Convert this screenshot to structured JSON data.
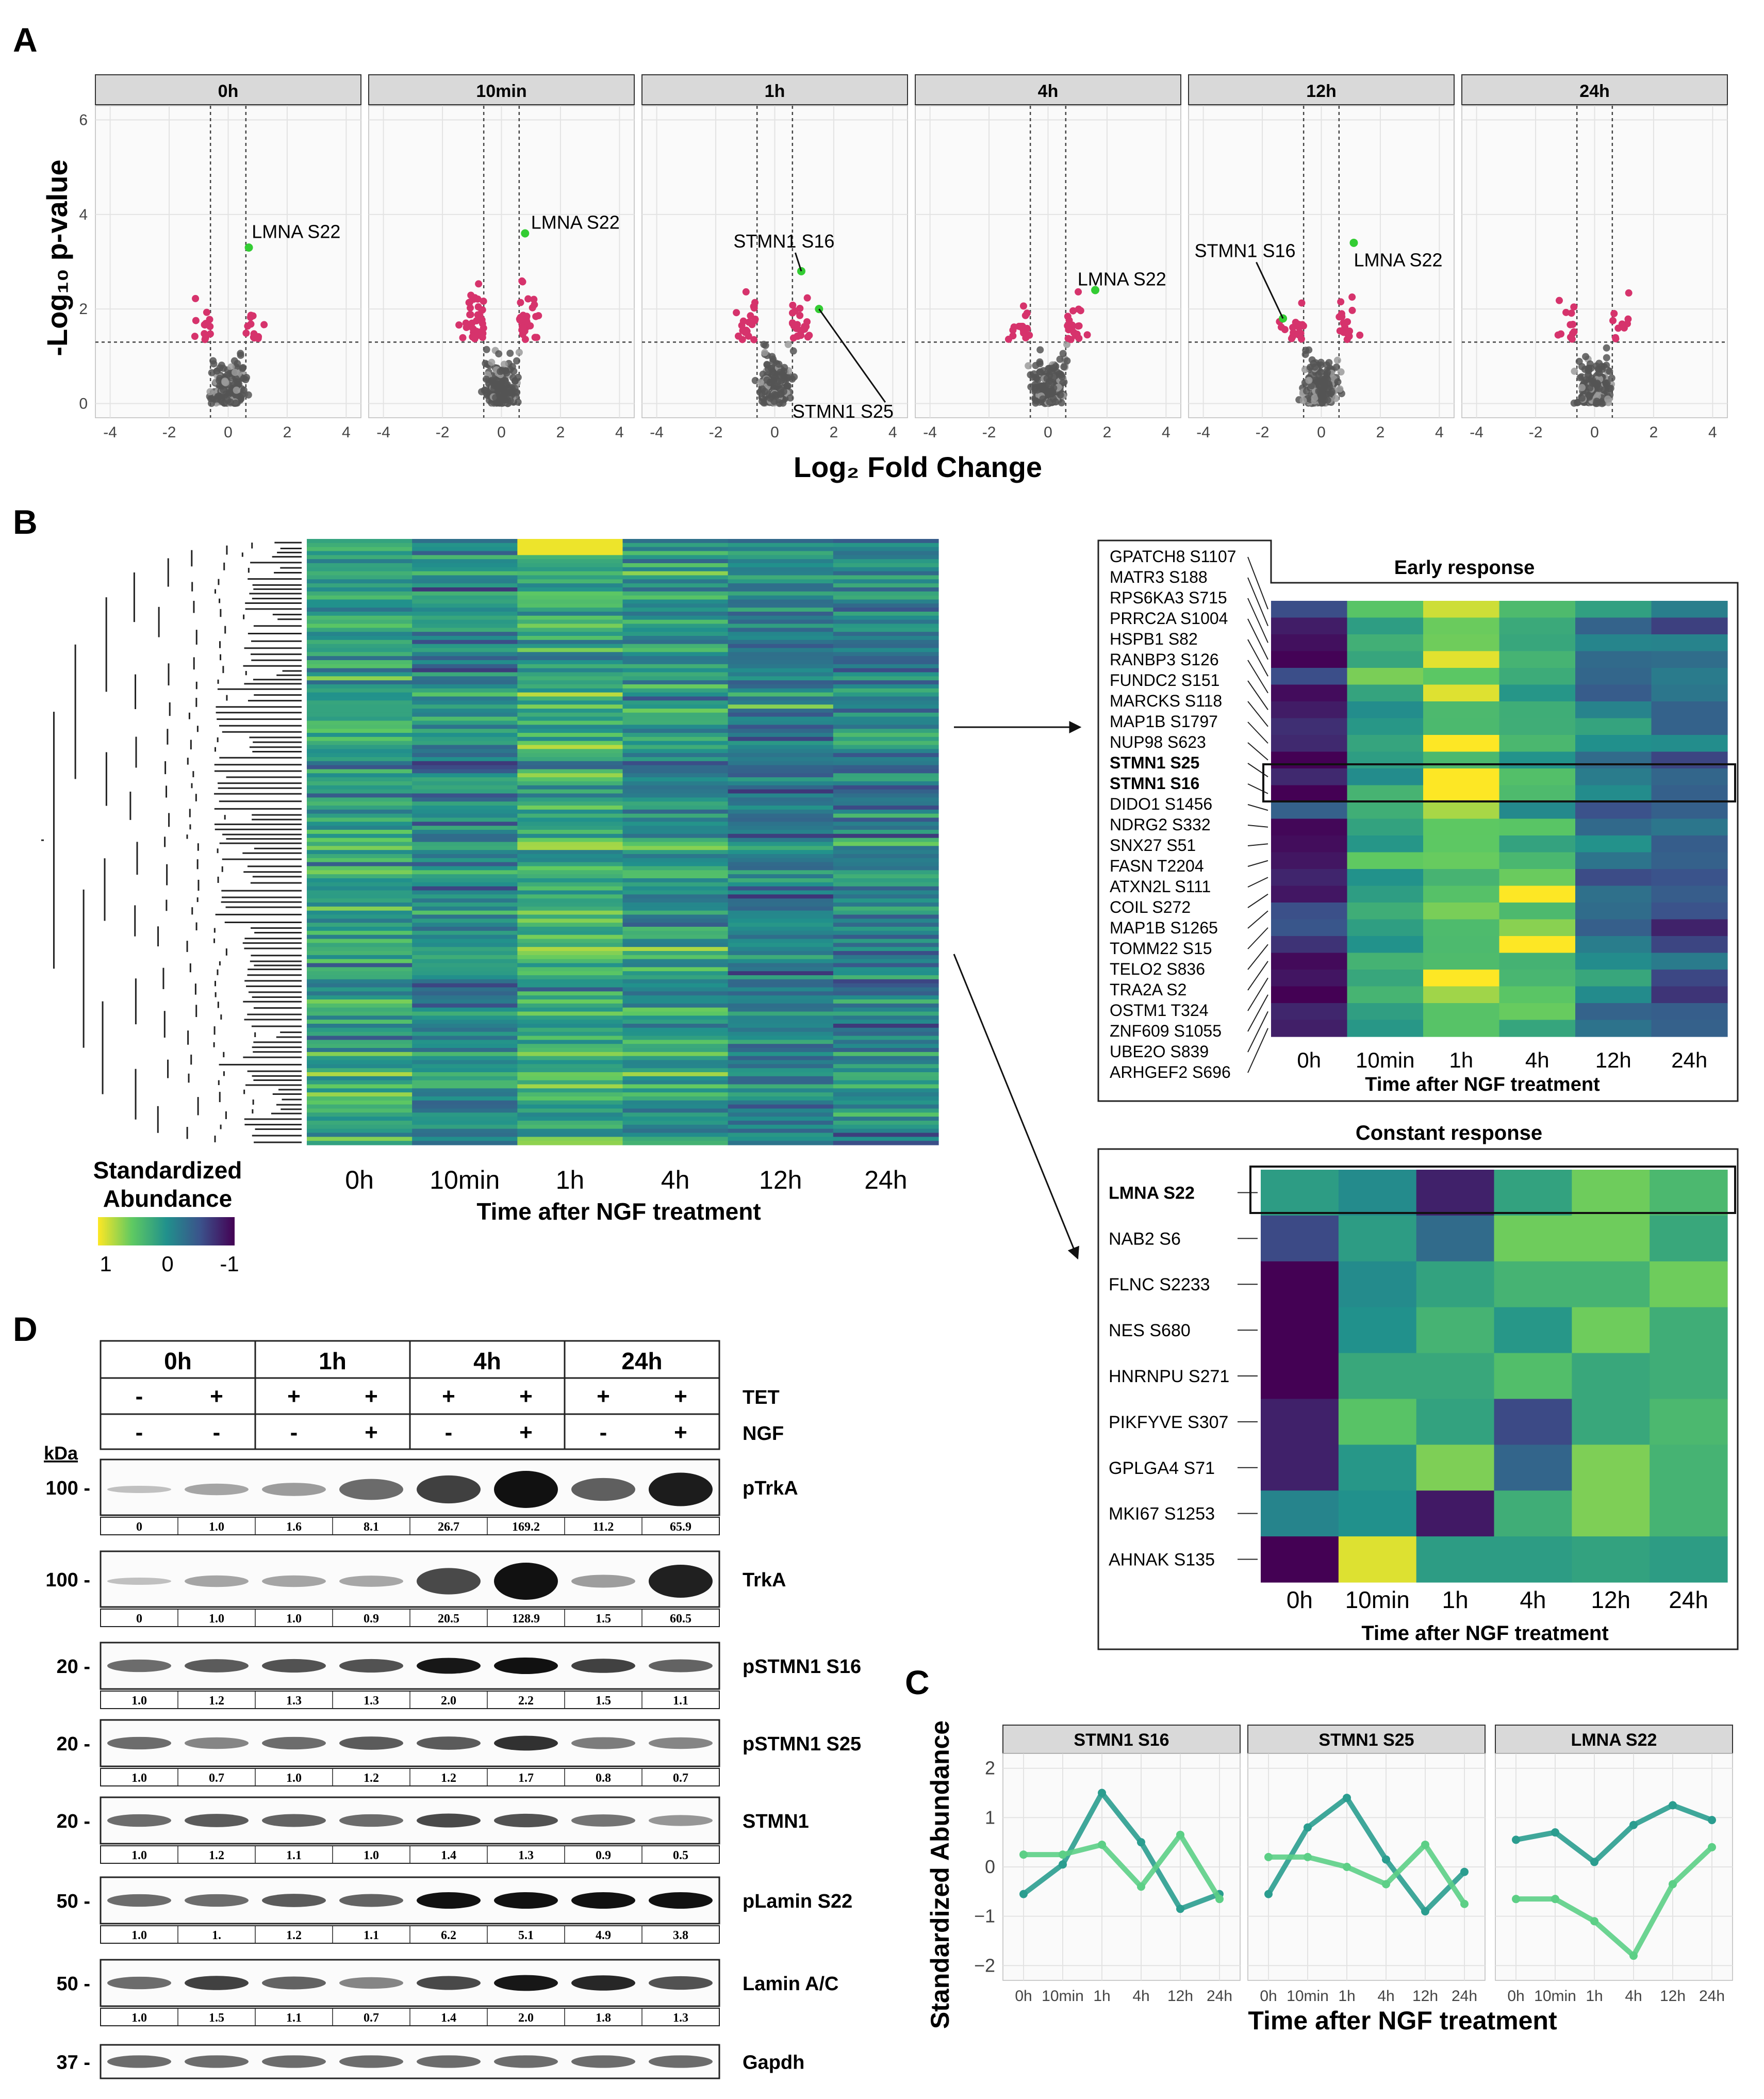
{
  "panels": {
    "a": "A",
    "b": "B",
    "c": "C",
    "d": "D"
  },
  "panel_a": {
    "y_title": "-Log₁₀ p-value",
    "x_title": "Log₂ Fold Change",
    "x_ticks": [
      "-4",
      "-2",
      "0",
      "2",
      "4"
    ],
    "y_ticks": [
      "0",
      "2",
      "4",
      "6"
    ],
    "facets": [
      "0h",
      "10min",
      "1h",
      "4h",
      "12h",
      "24h"
    ],
    "annotations": {
      "lmna": "LMNA S22",
      "stmn16": "STMN1 S16",
      "stmn25": "STMN1 S25"
    },
    "colors": {
      "sig": "#d6336c",
      "nonsig": "#555555",
      "highlight": "#33cc33"
    }
  },
  "panel_b": {
    "x_labels": [
      "0h",
      "10min",
      "1h",
      "4h",
      "12h",
      "24h"
    ],
    "x_title": "Time after NGF treatment",
    "legend_title": "Standardized Abundance",
    "legend_line1": "Standardized",
    "legend_line2": "Abundance",
    "legend_ticks": [
      "1",
      "0",
      "-1"
    ],
    "early_title": "Early response",
    "early_rows": [
      "GPATCH8 S1107",
      "MATR3 S188",
      "RPS6KA3 S715",
      "PRRC2A S1004",
      "HSPB1 S82",
      "RANBP3 S126",
      "FUNDC2 S151",
      "MARCKS S118",
      "MAP1B S1797",
      "NUP98 S623",
      "STMN1 S25",
      "STMN1 S16",
      "DIDO1 S1456",
      "NDRG2 S332",
      "SNX27 S51",
      "FASN T2204",
      "ATXN2L S111",
      "COIL S272",
      "MAP1B S1265",
      "TOMM22 S15",
      "TELO2 S836",
      "TRA2A S2",
      "OSTM1 T324",
      "ZNF609 S1055",
      "UBE2O S839",
      "ARHGEF2 S696"
    ],
    "constant_title": "Constant response",
    "constant_rows": [
      "LMNA S22",
      "NAB2 S6",
      "FLNC S2233",
      "NES S680",
      "HNRNPU S271",
      "PIKFYVE S307",
      "GPLGA4 S71",
      "MKI67 S1253",
      "AHNAK S135"
    ]
  },
  "panel_c": {
    "y_title": "Standardized Abundance",
    "x_title": "Time after NGF treatment",
    "facets": [
      "STMN1 S16",
      "STMN1 S25",
      "LMNA S22"
    ],
    "x_ticks": [
      "0h",
      "10min",
      "1h",
      "4h",
      "12h",
      "24h"
    ],
    "y_ticks": [
      "2",
      "1",
      "0",
      "−1",
      "−2"
    ],
    "colors": {
      "dark": "#2a9d8f",
      "light": "#5ccf86"
    }
  },
  "chart_data": {
    "type": "line",
    "title": "",
    "xlabel": "Time after NGF treatment",
    "ylabel": "Standardized Abundance",
    "x": [
      "0h",
      "10min",
      "1h",
      "4h",
      "12h",
      "24h"
    ],
    "ylim": [
      -2.3,
      2.3
    ],
    "facets": [
      {
        "name": "STMN1 S16",
        "series": [
          {
            "name": "dark",
            "values": [
              -0.55,
              0.05,
              1.5,
              0.5,
              -0.85,
              -0.55
            ]
          },
          {
            "name": "light",
            "values": [
              0.25,
              0.25,
              0.45,
              -0.4,
              0.65,
              -0.65
            ]
          }
        ]
      },
      {
        "name": "STMN1 S25",
        "series": [
          {
            "name": "dark",
            "values": [
              -0.55,
              0.8,
              1.4,
              0.15,
              -0.9,
              -0.1
            ]
          },
          {
            "name": "light",
            "values": [
              0.2,
              0.2,
              0.0,
              -0.35,
              0.45,
              -0.75
            ]
          }
        ]
      },
      {
        "name": "LMNA S22",
        "series": [
          {
            "name": "dark",
            "values": [
              0.55,
              0.7,
              0.1,
              0.85,
              1.25,
              0.95
            ]
          },
          {
            "name": "light",
            "values": [
              -0.65,
              -0.65,
              -1.1,
              -1.8,
              -0.35,
              0.4
            ]
          }
        ]
      }
    ]
  },
  "panel_d": {
    "kda": "kDa",
    "timepoints": [
      "0h",
      "1h",
      "4h",
      "24h"
    ],
    "tet_label": "TET",
    "ngf_label": "NGF",
    "tet": [
      "-",
      "+",
      "+",
      "+",
      "+",
      "+",
      "+",
      "+"
    ],
    "ngf": [
      "-",
      "-",
      "-",
      "+",
      "-",
      "+",
      "-",
      "+"
    ],
    "blots": [
      {
        "label": "pTrkA",
        "mw": "100 -",
        "values": [
          "0",
          "1.0",
          "1.6",
          "8.1",
          "26.7",
          "169.2",
          "11.2",
          "65.9"
        ]
      },
      {
        "label": "TrkA",
        "mw": "100 -",
        "values": [
          "0",
          "1.0",
          "1.0",
          "0.9",
          "20.5",
          "128.9",
          "1.5",
          "60.5"
        ]
      },
      {
        "label": "pSTMN1 S16",
        "mw": "20 -",
        "values": [
          "1.0",
          "1.2",
          "1.3",
          "1.3",
          "2.0",
          "2.2",
          "1.5",
          "1.1"
        ]
      },
      {
        "label": "pSTMN1 S25",
        "mw": "20 -",
        "values": [
          "1.0",
          "0.7",
          "1.0",
          "1.2",
          "1.2",
          "1.7",
          "0.8",
          "0.7"
        ]
      },
      {
        "label": "STMN1",
        "mw": "20 -",
        "values": [
          "1.0",
          "1.2",
          "1.1",
          "1.0",
          "1.4",
          "1.3",
          "0.9",
          "0.5"
        ]
      },
      {
        "label": "pLamin S22",
        "mw": "50 -",
        "values": [
          "1.0",
          "1.",
          "1.2",
          "1.1",
          "6.2",
          "5.1",
          "4.9",
          "3.8"
        ]
      },
      {
        "label": "Lamin A/C",
        "mw": "50 -",
        "values": [
          "1.0",
          "1.5",
          "1.1",
          "0.7",
          "1.4",
          "2.0",
          "1.8",
          "1.3"
        ]
      },
      {
        "label": "Gapdh",
        "mw": "37 -",
        "values": []
      }
    ]
  }
}
